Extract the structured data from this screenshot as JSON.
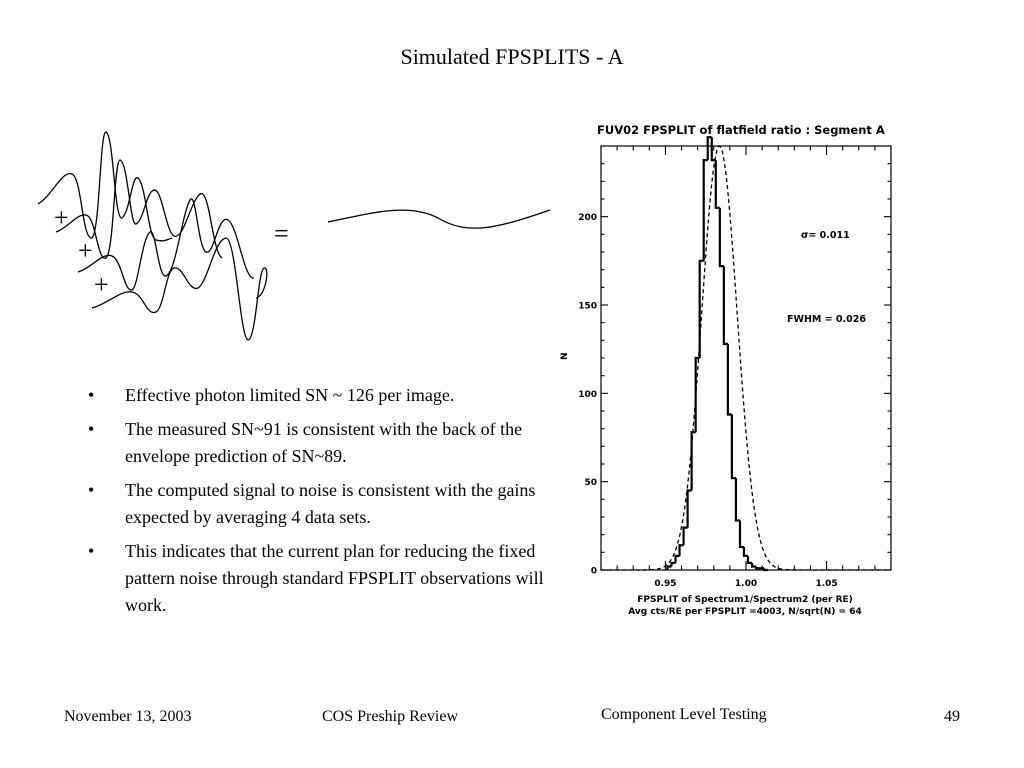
{
  "slide": {
    "title": "Simulated FPSPLITS - A",
    "diagram": {
      "plus": "+",
      "equals": "="
    },
    "bullets": [
      {
        "marker": "•",
        "text": "Effective photon limited SN ~ 126 per image."
      },
      {
        "marker": "•",
        "text": "The measured SN~91 is consistent with the back of the envelope prediction of SN~89."
      },
      {
        "marker": "•",
        "text": "The computed signal to noise is consistent with the gains expected by averaging 4 data sets."
      },
      {
        "marker": "•",
        "text": "This indicates that the current plan for reducing the fixed pattern noise through standard FPSPLIT observations will work."
      }
    ]
  },
  "footer": {
    "date": "November 13, 2003",
    "event": "COS Preship Review",
    "section": "Component Level Testing",
    "page": "49"
  },
  "chart_data": {
    "type": "bar",
    "title": "FUV02 FPSPLIT of flatfield ratio : Segment A",
    "xlabel": "FPSPLIT of Spectrum1/Spectrum2 (per RE)",
    "xlabel2": "Avg cts/RE per FPSPLIT =4003, N/sqrt(N) = 64",
    "ylabel": "N",
    "xlim": [
      0.91,
      1.09
    ],
    "ylim": [
      0,
      240
    ],
    "xticks": [
      0.95,
      1.0,
      1.05
    ],
    "xtick_labels": [
      "0.95",
      "1.00",
      "1.05"
    ],
    "yticks": [
      0,
      50,
      100,
      150,
      200
    ],
    "yticks_minor_step": 10,
    "xticks_minor_step": 0.01,
    "annotations": {
      "sigma": "σ= 0.011",
      "fwhm": "FWHM = 0.026"
    },
    "bin_width": 0.0025,
    "bins_x": [
      0.9525,
      0.955,
      0.9575,
      0.96,
      0.9625,
      0.965,
      0.9675,
      0.97,
      0.9725,
      0.975,
      0.9775,
      0.98,
      0.9825,
      0.985,
      0.9875,
      0.99,
      0.9925,
      0.995,
      0.9975,
      1.0,
      1.0025,
      1.005,
      1.0075,
      1.01,
      1.0125
    ],
    "counts": [
      2,
      4,
      8,
      14,
      24,
      45,
      78,
      120,
      175,
      232,
      245,
      232,
      205,
      172,
      128,
      88,
      52,
      28,
      13,
      8,
      4,
      2,
      1,
      1,
      0
    ],
    "fit": {
      "mean": 0.9835,
      "sigma": 0.011,
      "amplitude": 240
    }
  }
}
